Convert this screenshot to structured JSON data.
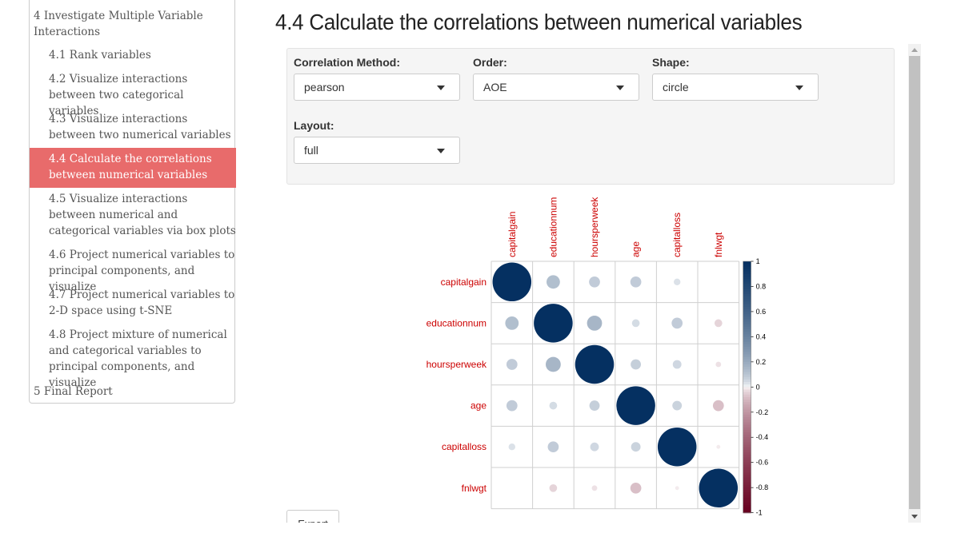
{
  "toc": {
    "items": [
      {
        "label": "4 Investigate Multiple Variable Interactions",
        "level": 1,
        "active": false
      },
      {
        "label": "4.1 Rank variables",
        "level": 2,
        "active": false
      },
      {
        "label": "4.2 Visualize interactions between two categorical variables",
        "level": 2,
        "active": false
      },
      {
        "label": "4.3 Visualize interactions between two numerical variables",
        "level": 2,
        "active": false
      },
      {
        "label": "4.4 Calculate the correlations between numerical variables",
        "level": 2,
        "active": true
      },
      {
        "label": "4.5 Visualize interactions between numerical and categorical variables via box plots",
        "level": 2,
        "active": false
      },
      {
        "label": "4.6 Project numerical variables to principal components, and visualize",
        "level": 2,
        "active": false
      },
      {
        "label": "4.7 Project numerical variables to 2-D space using t-SNE",
        "level": 2,
        "active": false
      },
      {
        "label": "4.8 Project mixture of numerical and categorical variables to principal components, and visualize",
        "level": 2,
        "active": false
      },
      {
        "label": "5 Final Report",
        "level": 1,
        "active": false
      }
    ],
    "active_color": "#e86b6b"
  },
  "main": {
    "title": "4.4 Calculate the correlations between numerical variables",
    "controls": {
      "method": {
        "label": "Correlation Method:",
        "value": "pearson"
      },
      "order": {
        "label": "Order:",
        "value": "AOE"
      },
      "shape": {
        "label": "Shape:",
        "value": "circle"
      },
      "layout": {
        "label": "Layout:",
        "value": "full"
      }
    },
    "export_label": "Export"
  },
  "chart_data": {
    "type": "heatmap",
    "shape": "circle",
    "variables": [
      "capitalgain",
      "educationnum",
      "hoursperweek",
      "age",
      "capitalloss",
      "fnlwgt"
    ],
    "matrix": [
      [
        1.0,
        0.12,
        0.08,
        0.08,
        0.03,
        0.0
      ],
      [
        0.12,
        1.0,
        0.15,
        0.04,
        0.08,
        -0.04
      ],
      [
        0.08,
        0.15,
        1.0,
        0.07,
        0.05,
        -0.02
      ],
      [
        0.08,
        0.04,
        0.07,
        1.0,
        0.06,
        -0.08
      ],
      [
        0.03,
        0.08,
        0.05,
        0.06,
        1.0,
        -0.01
      ],
      [
        0.0,
        -0.04,
        -0.02,
        -0.08,
        -0.01,
        1.0
      ]
    ],
    "colorbar_ticks": [
      "1",
      "0.8",
      "0.6",
      "0.4",
      "0.2",
      "0",
      "-0.2",
      "-0.4",
      "-0.6",
      "-0.8",
      "-1"
    ],
    "label_color": "#cc0000",
    "colors": {
      "pos": "#053061",
      "neg": "#67001f",
      "mid": "#ffffff"
    }
  }
}
